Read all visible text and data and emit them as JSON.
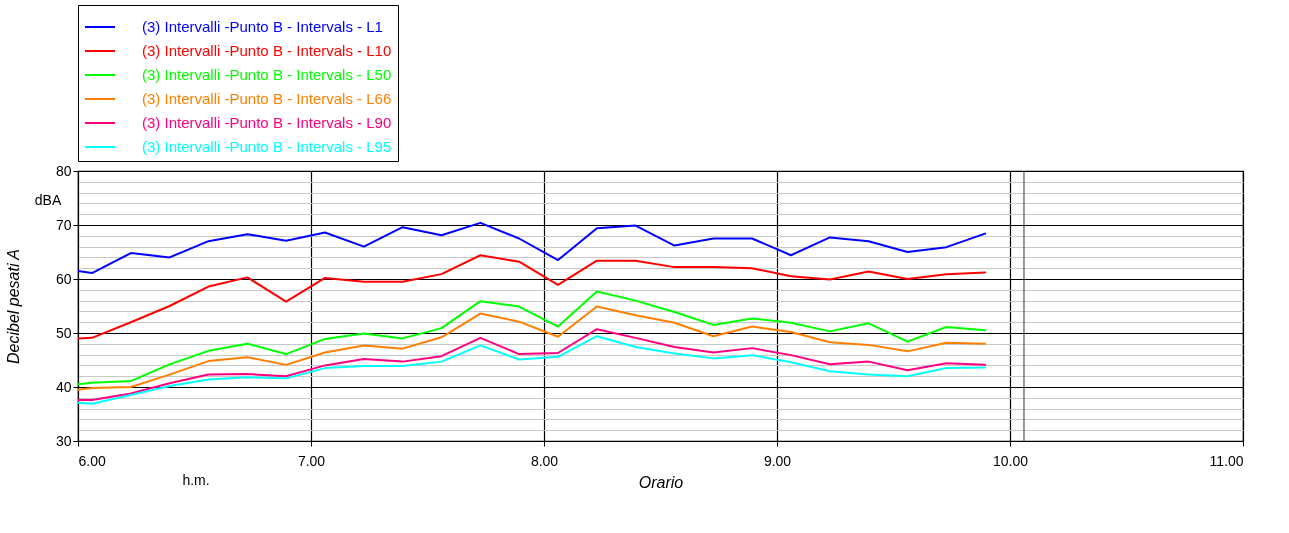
{
  "chart_data": {
    "type": "line",
    "xlabel": "Orario",
    "ylabel": "Decibel pesati A",
    "annotations": [
      "dBA",
      "h.m."
    ],
    "x": [
      6.0,
      6.06,
      6.227,
      6.393,
      6.56,
      6.727,
      6.893,
      7.06,
      7.227,
      7.393,
      7.56,
      7.727,
      7.893,
      8.06,
      8.227,
      8.393,
      8.56,
      8.727,
      8.893,
      9.06,
      9.227,
      9.393,
      9.56,
      9.727,
      9.893
    ],
    "series": [
      {
        "name": "(3) Intervalli -Punto B - Intervals - L1",
        "color": "#0000ff",
        "values": [
          61.5,
          61.1,
          64.8,
          64.0,
          67.0,
          68.3,
          67.1,
          68.6,
          66.0,
          69.6,
          68.1,
          70.4,
          67.5,
          63.5,
          69.4,
          69.9,
          66.2,
          67.5,
          67.5,
          64.4,
          67.7,
          67.0,
          65.0,
          65.9,
          68.4
        ]
      },
      {
        "name": "(3) Intervalli -Punto B - Intervals - L10",
        "color": "#ff0000",
        "values": [
          49.0,
          49.1,
          52.0,
          55.0,
          58.6,
          60.3,
          55.8,
          60.2,
          59.5,
          59.5,
          60.9,
          64.4,
          63.2,
          58.9,
          63.4,
          63.4,
          62.2,
          62.2,
          62.0,
          60.5,
          59.9,
          61.4,
          60.0,
          60.9,
          61.2
        ]
      },
      {
        "name": "(3) Intervalli -Punto B - Intervals - L50",
        "color": "#00ff00",
        "values": [
          40.5,
          40.8,
          41.1,
          44.2,
          46.7,
          48.0,
          46.1,
          48.9,
          49.9,
          49.0,
          50.9,
          55.9,
          54.9,
          51.2,
          57.7,
          56.0,
          53.9,
          51.5,
          52.7,
          51.9,
          50.3,
          51.8,
          48.4,
          51.1,
          50.5
        ]
      },
      {
        "name": "(3) Intervalli -Punto B - Intervals - L66",
        "color": "#ff8000",
        "values": [
          39.5,
          39.8,
          40.0,
          42.3,
          44.8,
          45.5,
          44.1,
          46.4,
          47.7,
          47.1,
          49.2,
          53.6,
          52.1,
          49.3,
          54.9,
          53.3,
          51.9,
          49.4,
          51.2,
          50.2,
          48.3,
          47.8,
          46.6,
          48.2,
          48.0
        ]
      },
      {
        "name": "(3) Intervalli -Punto B - Intervals - L90",
        "color": "#ff0080",
        "values": [
          37.6,
          37.6,
          38.8,
          40.7,
          42.3,
          42.4,
          42.0,
          44.0,
          45.2,
          44.7,
          45.7,
          49.1,
          46.1,
          46.3,
          50.7,
          49.1,
          47.4,
          46.4,
          47.2,
          45.9,
          44.2,
          44.7,
          43.1,
          44.4,
          44.1
        ]
      },
      {
        "name": "(3) Intervalli -Punto B - Intervals - L95",
        "color": "#00ffff",
        "values": [
          37.1,
          36.9,
          38.5,
          40.2,
          41.4,
          41.8,
          41.6,
          43.5,
          43.9,
          43.9,
          44.7,
          47.7,
          45.1,
          45.6,
          49.4,
          47.4,
          46.2,
          45.3,
          45.9,
          44.6,
          42.9,
          42.3,
          42.0,
          43.5,
          43.6
        ]
      }
    ],
    "xlim": [
      6,
      11
    ],
    "xticks": [
      {
        "value": 6,
        "label": "6.00"
      },
      {
        "value": 7,
        "label": "7.00"
      },
      {
        "value": 8,
        "label": "8.00"
      },
      {
        "value": 9,
        "label": "9.00"
      },
      {
        "value": 10,
        "label": "10.00"
      },
      {
        "value": 11,
        "label": "11.00"
      }
    ],
    "ylim": [
      30,
      80
    ],
    "yticks": [
      30,
      {
        "value": 32,
        "label": null
      },
      {
        "value": 34,
        "label": null
      },
      {
        "value": 36,
        "label": null
      },
      {
        "value": 38,
        "label": null
      },
      40,
      {
        "value": 42,
        "label": null
      },
      {
        "value": 44,
        "label": null
      },
      {
        "value": 46,
        "label": null
      },
      {
        "value": 48,
        "label": null
      },
      50,
      {
        "value": 52,
        "label": null
      },
      {
        "value": 54,
        "label": null
      },
      {
        "value": 56,
        "label": null
      },
      {
        "value": 58,
        "label": null
      },
      60,
      {
        "value": 62,
        "label": null
      },
      {
        "value": 64,
        "label": null
      },
      {
        "value": 66,
        "label": null
      },
      {
        "value": 68,
        "label": null
      },
      70,
      {
        "value": 72,
        "label": null
      },
      {
        "value": 74,
        "label": null
      },
      {
        "value": 76,
        "label": null
      },
      {
        "value": 78,
        "label": null
      },
      80
    ],
    "ref_lines": [
      {
        "axis": "x",
        "value": 10.06,
        "color": "#555555"
      }
    ],
    "grid": true,
    "legend": "top",
    "line_style": "solid",
    "marker": "none"
  }
}
